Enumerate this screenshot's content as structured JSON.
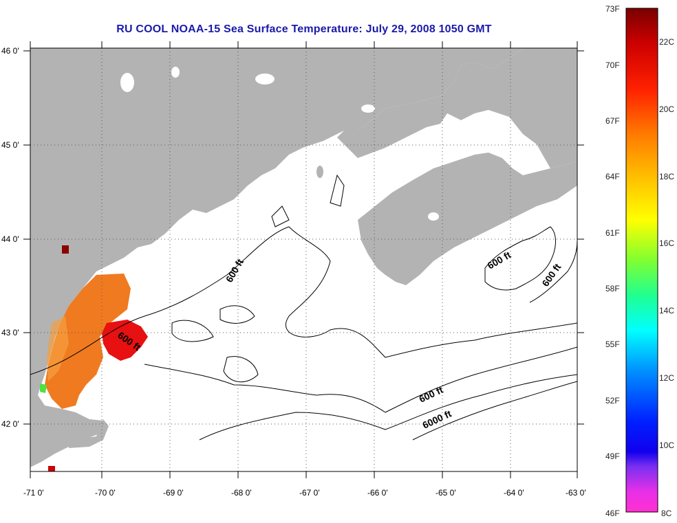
{
  "title": "RU COOL  NOAA-15  Sea Surface Temperature:  July 29, 2008 1050 GMT",
  "longitude_labels": [
    "-71 0'",
    "-70 0'",
    "-69 0'",
    "-68 0'",
    "-67 0'",
    "-66 0'",
    "-65 0'",
    "-64 0'",
    "-63 0'"
  ],
  "latitude_labels": [
    "46 0'",
    "45 0'",
    "44 0'",
    "43 0'",
    "42 0'"
  ],
  "contour_labels": [
    {
      "text": "600 ft"
    },
    {
      "text": "600 ft"
    },
    {
      "text": "600 ft"
    },
    {
      "text": "600 ft"
    },
    {
      "text": "600 ft"
    },
    {
      "text": "6000 ft"
    }
  ],
  "colorbar": {
    "fahrenheit_labels": [
      "73F",
      "70F",
      "67F",
      "64F",
      "61F",
      "58F",
      "55F",
      "52F",
      "49F",
      "46F"
    ],
    "celsius_labels": [
      "22C",
      "20C",
      "18C",
      "16C",
      "14C",
      "12C",
      "10C",
      "8C"
    ]
  },
  "colors": {
    "title": "#1a1aaa",
    "land": "#b3b3b3",
    "sst_warm": "#e01010",
    "sst_mid": "#f07a20"
  }
}
